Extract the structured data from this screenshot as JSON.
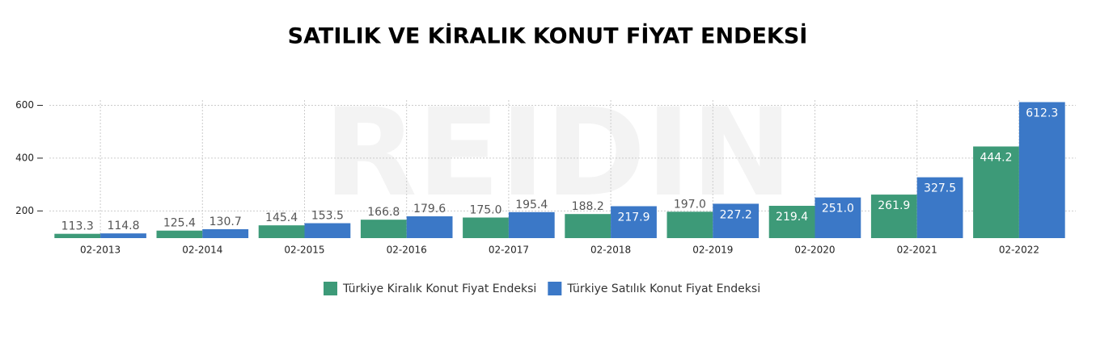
{
  "chart_data": {
    "type": "bar",
    "title": "SATILIK VE KİRALIK KONUT FİYAT ENDEKSİ",
    "watermark": "REIDIN",
    "categories": [
      "02-2013",
      "02-2014",
      "02-2015",
      "02-2016",
      "02-2017",
      "02-2018",
      "02-2019",
      "02-2020",
      "02-2021",
      "02-2022"
    ],
    "series": [
      {
        "name": "Türkiye Kiralık Konut Fiyat Endeksi",
        "color": "#3d9a78",
        "values": [
          113.3,
          125.4,
          145.4,
          166.8,
          175.0,
          188.2,
          197.0,
          219.4,
          261.9,
          444.2
        ],
        "value_labels": [
          "113.3",
          "125.4",
          "145.4",
          "166.8",
          "175.0",
          "188.2",
          "197.0",
          "219.4",
          "261.9",
          "444.2"
        ]
      },
      {
        "name": "Türkiye Satılık Konut Fiyat Endeksi",
        "color": "#3b78c7",
        "values": [
          114.8,
          130.7,
          153.5,
          179.6,
          195.4,
          217.9,
          227.2,
          251.0,
          327.5,
          612.3
        ],
        "value_labels": [
          "114.8",
          "130.7",
          "153.5",
          "179.6",
          "195.4",
          "217.9",
          "227.2",
          "251.0",
          "327.5",
          "612.3"
        ]
      }
    ],
    "ylim": [
      97,
      620
    ],
    "yticks": [
      200,
      400,
      600
    ],
    "grid": true,
    "legend": "bottom"
  }
}
